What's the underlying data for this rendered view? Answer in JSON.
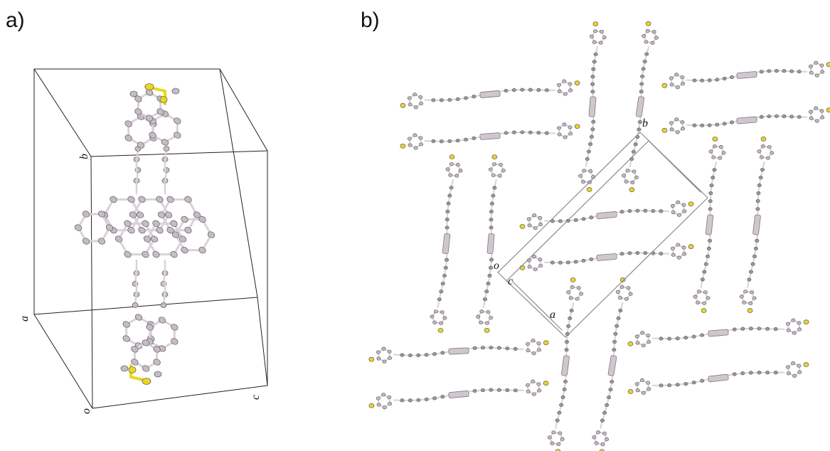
{
  "figure": {
    "panel_a_label": "a)",
    "panel_b_label": "b)",
    "panel_a_axes": {
      "origin": "o",
      "a": "a",
      "b": "b",
      "c": "c"
    },
    "panel_b_axes": {
      "origin": "o",
      "a": "a",
      "b": "b",
      "c": "c"
    },
    "colors": {
      "carbon": "#c6bcc4",
      "carbon_dark": "#9d95a0",
      "bond": "#d9d2d8",
      "sulfur": "#e8d81e",
      "nitrogen": "#8f96a6",
      "cell": "#222222",
      "cell_b": "#8a8a8a"
    }
  }
}
